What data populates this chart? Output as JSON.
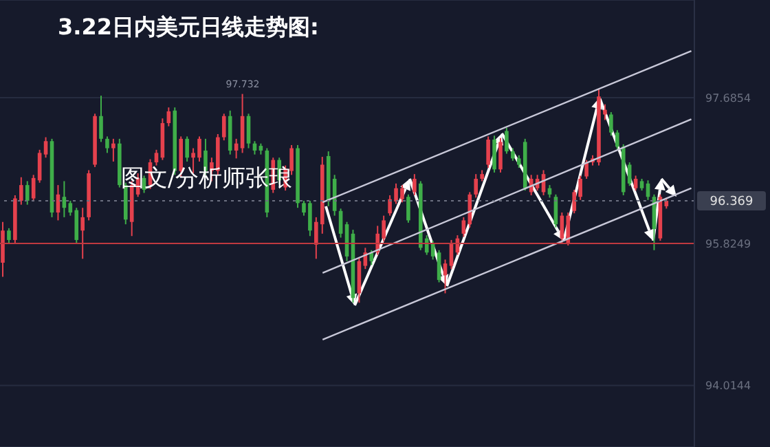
{
  "chart_data": {
    "type": "candlestick",
    "title": "3.22日内美元日线走势图:",
    "annotations": [
      {
        "text": "97.732",
        "y": 97.732
      },
      "图文/分析师张琅"
    ],
    "categories": [
      null,
      null,
      null,
      null,
      null,
      null,
      null,
      null,
      null,
      null,
      null,
      null,
      null,
      null,
      null,
      null,
      null,
      null,
      null,
      null,
      null,
      null,
      null,
      null,
      null,
      null,
      null,
      null,
      null,
      null,
      null,
      null,
      null,
      null,
      null,
      null,
      null,
      null,
      null,
      null,
      null,
      null,
      null,
      null,
      null,
      null,
      null,
      null,
      null,
      null,
      null,
      null,
      null,
      null,
      null,
      null,
      null,
      null,
      null,
      null,
      null,
      null,
      null,
      null,
      null,
      null,
      null,
      null,
      null,
      null,
      null,
      null,
      null,
      null,
      null,
      null,
      null,
      null,
      null,
      null,
      null,
      null,
      null,
      null,
      null,
      null,
      null,
      null,
      null,
      null,
      null,
      null,
      null,
      null,
      null,
      null,
      null,
      null,
      null,
      null,
      null,
      null,
      null,
      null,
      null,
      null,
      null,
      null,
      null,
      null,
      null,
      null,
      null
    ],
    "ohlc": [
      [
        95.58,
        96.1,
        95.4,
        95.99
      ],
      [
        95.99,
        96.02,
        95.82,
        95.87
      ],
      [
        95.87,
        96.44,
        95.82,
        96.4
      ],
      [
        96.37,
        96.67,
        96.32,
        96.57
      ],
      [
        96.57,
        96.62,
        96.32,
        96.37
      ],
      [
        96.4,
        96.7,
        96.36,
        96.66
      ],
      [
        96.63,
        97.02,
        96.6,
        96.98
      ],
      [
        96.96,
        97.18,
        96.92,
        97.13
      ],
      [
        97.13,
        97.16,
        96.16,
        96.22
      ],
      [
        96.22,
        96.57,
        96.12,
        96.45
      ],
      [
        96.42,
        96.62,
        96.16,
        96.28
      ],
      [
        96.34,
        96.37,
        96.18,
        96.22
      ],
      [
        96.25,
        96.28,
        95.82,
        95.87
      ],
      [
        95.99,
        96.28,
        95.63,
        96.16
      ],
      [
        96.16,
        96.76,
        96.12,
        96.72
      ],
      [
        96.83,
        97.48,
        96.8,
        97.45
      ],
      [
        97.45,
        97.71,
        97.12,
        97.16
      ],
      [
        97.16,
        97.19,
        96.98,
        97.04
      ],
      [
        97.04,
        97.16,
        96.87,
        97.1
      ],
      [
        97.1,
        97.16,
        96.54,
        96.57
      ],
      [
        96.57,
        96.6,
        96.07,
        96.13
      ],
      [
        96.1,
        96.62,
        95.92,
        96.57
      ],
      [
        96.45,
        96.72,
        96.42,
        96.66
      ],
      [
        96.66,
        96.69,
        96.47,
        96.51
      ],
      [
        96.57,
        96.9,
        96.52,
        96.86
      ],
      [
        96.86,
        97.02,
        96.82,
        96.98
      ],
      [
        96.92,
        97.42,
        96.89,
        97.36
      ],
      [
        97.36,
        97.56,
        97.32,
        97.51
      ],
      [
        97.52,
        97.56,
        96.7,
        96.75
      ],
      [
        96.75,
        97.19,
        96.67,
        97.16
      ],
      [
        97.16,
        97.19,
        96.87,
        96.92
      ],
      [
        96.92,
        97.04,
        96.72,
        96.98
      ],
      [
        96.92,
        97.19,
        96.87,
        97.16
      ],
      [
        97.01,
        97.16,
        96.7,
        96.75
      ],
      [
        96.75,
        96.92,
        96.62,
        96.86
      ],
      [
        96.75,
        97.22,
        96.7,
        97.18
      ],
      [
        97.18,
        97.48,
        97.14,
        97.45
      ],
      [
        97.45,
        97.52,
        96.96,
        97.01
      ],
      [
        97.01,
        97.16,
        96.91,
        97.1
      ],
      [
        97.04,
        97.732,
        96.98,
        97.45
      ],
      [
        97.45,
        97.48,
        97.04,
        97.1
      ],
      [
        97.1,
        97.13,
        96.96,
        97.01
      ],
      [
        97.07,
        97.1,
        96.96,
        97.01
      ],
      [
        97.01,
        97.04,
        96.16,
        96.22
      ],
      [
        96.51,
        96.92,
        96.47,
        96.89
      ],
      [
        96.89,
        96.92,
        96.58,
        96.63
      ],
      [
        96.54,
        96.82,
        96.5,
        96.78
      ],
      [
        96.75,
        97.08,
        96.7,
        97.04
      ],
      [
        97.04,
        97.08,
        96.28,
        96.34
      ],
      [
        96.34,
        96.37,
        96.18,
        96.22
      ],
      [
        96.34,
        96.37,
        95.92,
        95.99
      ],
      [
        95.81,
        96.16,
        95.63,
        96.1
      ],
      [
        96.07,
        96.93,
        95.95,
        96.83
      ],
      [
        96.94,
        97.0,
        96.3,
        96.36
      ],
      [
        96.65,
        96.7,
        96.18,
        96.24
      ],
      [
        96.24,
        96.27,
        95.9,
        95.95
      ],
      [
        96.07,
        96.1,
        95.6,
        95.66
      ],
      [
        95.95,
        96.0,
        95.07,
        95.13
      ],
      [
        95.19,
        95.65,
        95.07,
        95.6
      ],
      [
        95.54,
        95.77,
        95.5,
        95.71
      ],
      [
        95.71,
        95.74,
        95.55,
        95.6
      ],
      [
        95.71,
        96.05,
        95.68,
        95.95
      ],
      [
        95.89,
        96.18,
        95.85,
        96.12
      ],
      [
        96.21,
        96.44,
        96.18,
        96.39
      ],
      [
        96.36,
        96.59,
        96.33,
        96.53
      ],
      [
        96.39,
        96.57,
        96.35,
        96.53
      ],
      [
        96.42,
        96.45,
        96.09,
        96.12
      ],
      [
        96.48,
        96.71,
        96.44,
        96.65
      ],
      [
        96.59,
        96.62,
        95.74,
        95.77
      ],
      [
        95.89,
        95.93,
        95.68,
        95.71
      ],
      [
        95.83,
        95.86,
        95.62,
        95.66
      ],
      [
        95.71,
        95.74,
        95.33,
        95.36
      ],
      [
        95.42,
        95.62,
        95.19,
        95.57
      ],
      [
        95.54,
        95.87,
        95.5,
        95.83
      ],
      [
        95.71,
        95.93,
        95.68,
        95.89
      ],
      [
        95.95,
        96.16,
        95.91,
        96.12
      ],
      [
        96.07,
        96.48,
        96.03,
        96.45
      ],
      [
        96.45,
        96.71,
        96.41,
        96.65
      ],
      [
        96.65,
        96.76,
        96.62,
        96.71
      ],
      [
        96.83,
        97.19,
        96.79,
        97.15
      ],
      [
        97.15,
        97.2,
        96.73,
        96.77
      ],
      [
        96.77,
        97.17,
        96.73,
        97.12
      ],
      [
        97.26,
        97.3,
        96.97,
        97.0
      ],
      [
        97.0,
        97.04,
        96.88,
        96.91
      ],
      [
        96.91,
        96.95,
        96.79,
        96.83
      ],
      [
        97.12,
        97.16,
        96.5,
        96.53
      ],
      [
        96.48,
        96.7,
        96.44,
        96.65
      ],
      [
        96.53,
        96.7,
        96.5,
        96.65
      ],
      [
        96.48,
        96.76,
        96.44,
        96.71
      ],
      [
        96.53,
        96.57,
        96.41,
        96.45
      ],
      [
        96.42,
        96.45,
        96.03,
        96.07
      ],
      [
        95.89,
        96.22,
        95.83,
        96.18
      ],
      [
        95.83,
        96.22,
        95.8,
        96.18
      ],
      [
        96.24,
        96.51,
        96.21,
        96.48
      ],
      [
        96.42,
        96.69,
        96.38,
        96.65
      ],
      [
        96.68,
        96.89,
        96.65,
        96.86
      ],
      [
        96.86,
        96.95,
        96.82,
        96.91
      ],
      [
        96.86,
        97.79,
        96.82,
        97.7
      ],
      [
        97.47,
        97.6,
        97.4,
        97.53
      ],
      [
        97.47,
        97.5,
        97.2,
        97.24
      ],
      [
        97.24,
        97.27,
        97.03,
        97.06
      ],
      [
        97.06,
        97.09,
        96.44,
        96.48
      ],
      [
        96.83,
        96.86,
        96.56,
        96.59
      ],
      [
        96.53,
        96.69,
        96.5,
        96.65
      ],
      [
        96.62,
        96.65,
        96.5,
        96.53
      ],
      [
        96.59,
        96.63,
        96.38,
        96.42
      ],
      [
        96.42,
        96.45,
        95.74,
        96.01
      ],
      [
        95.89,
        96.45,
        95.86,
        96.42
      ],
      [
        96.3,
        96.41,
        96.27,
        96.369
      ],
      null,
      null,
      null,
      null
    ],
    "colors": [
      "#e5414d",
      "#3fae49",
      "#e5414d",
      "#e5414d",
      "#3fae49",
      "#e5414d",
      "#e5414d",
      "#e5414d",
      "#3fae49",
      "#e5414d",
      "#3fae49",
      "#3fae49",
      "#3fae49",
      "#e5414d",
      "#e5414d",
      "#e5414d",
      "#3fae49",
      "#3fae49",
      "#e5414d",
      "#3fae49",
      "#3fae49",
      "#e5414d",
      "#e5414d",
      "#3fae49",
      "#e5414d",
      "#e5414d",
      "#e5414d",
      "#e5414d",
      "#3fae49",
      "#e5414d",
      "#3fae49",
      "#e5414d",
      "#e5414d",
      "#3fae49",
      "#e5414d",
      "#e5414d",
      "#e5414d",
      "#3fae49",
      "#e5414d",
      "#e5414d",
      "#3fae49",
      "#3fae49",
      "#3fae49",
      "#3fae49",
      "#e5414d",
      "#3fae49",
      "#e5414d",
      "#e5414d",
      "#3fae49",
      "#3fae49",
      "#3fae49",
      "#e5414d",
      "#e5414d",
      "#3fae49",
      "#3fae49",
      "#3fae49",
      "#3fae49",
      "#3fae49",
      "#e5414d",
      "#e5414d",
      "#3fae49",
      "#e5414d",
      "#e5414d",
      "#e5414d",
      "#e5414d",
      "#e5414d",
      "#3fae49",
      "#e5414d",
      "#3fae49",
      "#3fae49",
      "#3fae49",
      "#3fae49",
      "#e5414d",
      "#e5414d",
      "#e5414d",
      "#e5414d",
      "#e5414d",
      "#e5414d",
      "#e5414d",
      "#e5414d",
      "#3fae49",
      "#e5414d",
      "#3fae49",
      "#3fae49",
      "#3fae49",
      "#3fae49",
      "#e5414d",
      "#e5414d",
      "#e5414d",
      "#3fae49",
      "#3fae49",
      "#e5414d",
      "#e5414d",
      "#e5414d",
      "#e5414d",
      "#e5414d",
      "#e5414d",
      "#e5414d",
      "#e5414d",
      "#3fae49",
      "#3fae49",
      "#3fae49",
      "#3fae49",
      "#e5414d",
      "#3fae49",
      "#3fae49",
      "#3fae49",
      "#e5414d",
      "#e5414d",
      null,
      null,
      null,
      null
    ],
    "series": [
      {
        "type": "line",
        "color": "#c8c8d8",
        "values": [
          null,
          null,
          null,
          null,
          null,
          null,
          null,
          null,
          null,
          null,
          null,
          null,
          null,
          null,
          null,
          null,
          null,
          null,
          null,
          null,
          null,
          null,
          null,
          null,
          null,
          null,
          null,
          null,
          null,
          null,
          null,
          null,
          null,
          null,
          null,
          null,
          null,
          null,
          null,
          null,
          null,
          null,
          null,
          null,
          null,
          null,
          null,
          null,
          null,
          null,
          null,
          null,
          96.35,
          null,
          null,
          null,
          null,
          null,
          null,
          null,
          null,
          null,
          null,
          null,
          null,
          null,
          null,
          null,
          null,
          null,
          null,
          null,
          null,
          null,
          null,
          null,
          null,
          null,
          null,
          null,
          null,
          null,
          null,
          null,
          null,
          null,
          null,
          null,
          null,
          null,
          null,
          null,
          null,
          null,
          null,
          null,
          null,
          null,
          null,
          null,
          null,
          null,
          null,
          null,
          null,
          null,
          null,
          null,
          null,
          null,
          null,
          null,
          98.28
        ]
      },
      {
        "type": "line",
        "color": "#c8c8d8",
        "values": [
          null,
          null,
          null,
          null,
          null,
          null,
          null,
          null,
          null,
          null,
          null,
          null,
          null,
          null,
          null,
          null,
          null,
          null,
          null,
          null,
          null,
          null,
          null,
          null,
          null,
          null,
          null,
          null,
          null,
          null,
          null,
          null,
          null,
          null,
          null,
          null,
          null,
          null,
          null,
          null,
          null,
          null,
          null,
          null,
          null,
          null,
          null,
          null,
          null,
          null,
          null,
          null,
          95.45,
          null,
          null,
          null,
          null,
          null,
          null,
          null,
          null,
          null,
          null,
          null,
          null,
          null,
          null,
          null,
          null,
          null,
          null,
          null,
          null,
          null,
          null,
          null,
          null,
          null,
          null,
          null,
          null,
          null,
          null,
          null,
          null,
          null,
          null,
          null,
          null,
          null,
          null,
          null,
          null,
          null,
          null,
          null,
          null,
          null,
          null,
          null,
          null,
          null,
          null,
          null,
          null,
          null,
          null,
          null,
          null,
          null,
          null,
          null,
          97.41
        ]
      },
      {
        "type": "line",
        "color": "#c8c8d8",
        "values": [
          null,
          null,
          null,
          null,
          null,
          null,
          null,
          null,
          null,
          null,
          null,
          null,
          null,
          null,
          null,
          null,
          null,
          null,
          null,
          null,
          null,
          null,
          null,
          null,
          null,
          null,
          null,
          null,
          null,
          null,
          null,
          null,
          null,
          null,
          null,
          null,
          null,
          null,
          null,
          null,
          null,
          null,
          null,
          null,
          null,
          null,
          null,
          null,
          null,
          null,
          null,
          null,
          94.6,
          null,
          null,
          null,
          null,
          null,
          null,
          null,
          null,
          null,
          null,
          null,
          null,
          null,
          null,
          null,
          null,
          null,
          null,
          null,
          null,
          null,
          null,
          null,
          null,
          null,
          null,
          null,
          null,
          null,
          null,
          null,
          null,
          null,
          null,
          null,
          null,
          null,
          null,
          null,
          null,
          null,
          null,
          null,
          null,
          null,
          null,
          null,
          null,
          null,
          null,
          null,
          null,
          null,
          null,
          null,
          null,
          null,
          null,
          null,
          96.53
        ]
      }
    ],
    "ylim": [
      93.23,
      98.93
    ],
    "yticks": [
      94.0144,
      95.8249,
      97.6854
    ],
    "grid": "y",
    "tick_labels": "y",
    "ref_lines": [
      {
        "axis": "y",
        "value": 96.369,
        "label": "96.369",
        "color": "#6b7080",
        "line_style": "dotted"
      },
      {
        "axis": "y",
        "value": 95.8249,
        "color": "#c0393f",
        "line_style": "solid"
      }
    ]
  }
}
